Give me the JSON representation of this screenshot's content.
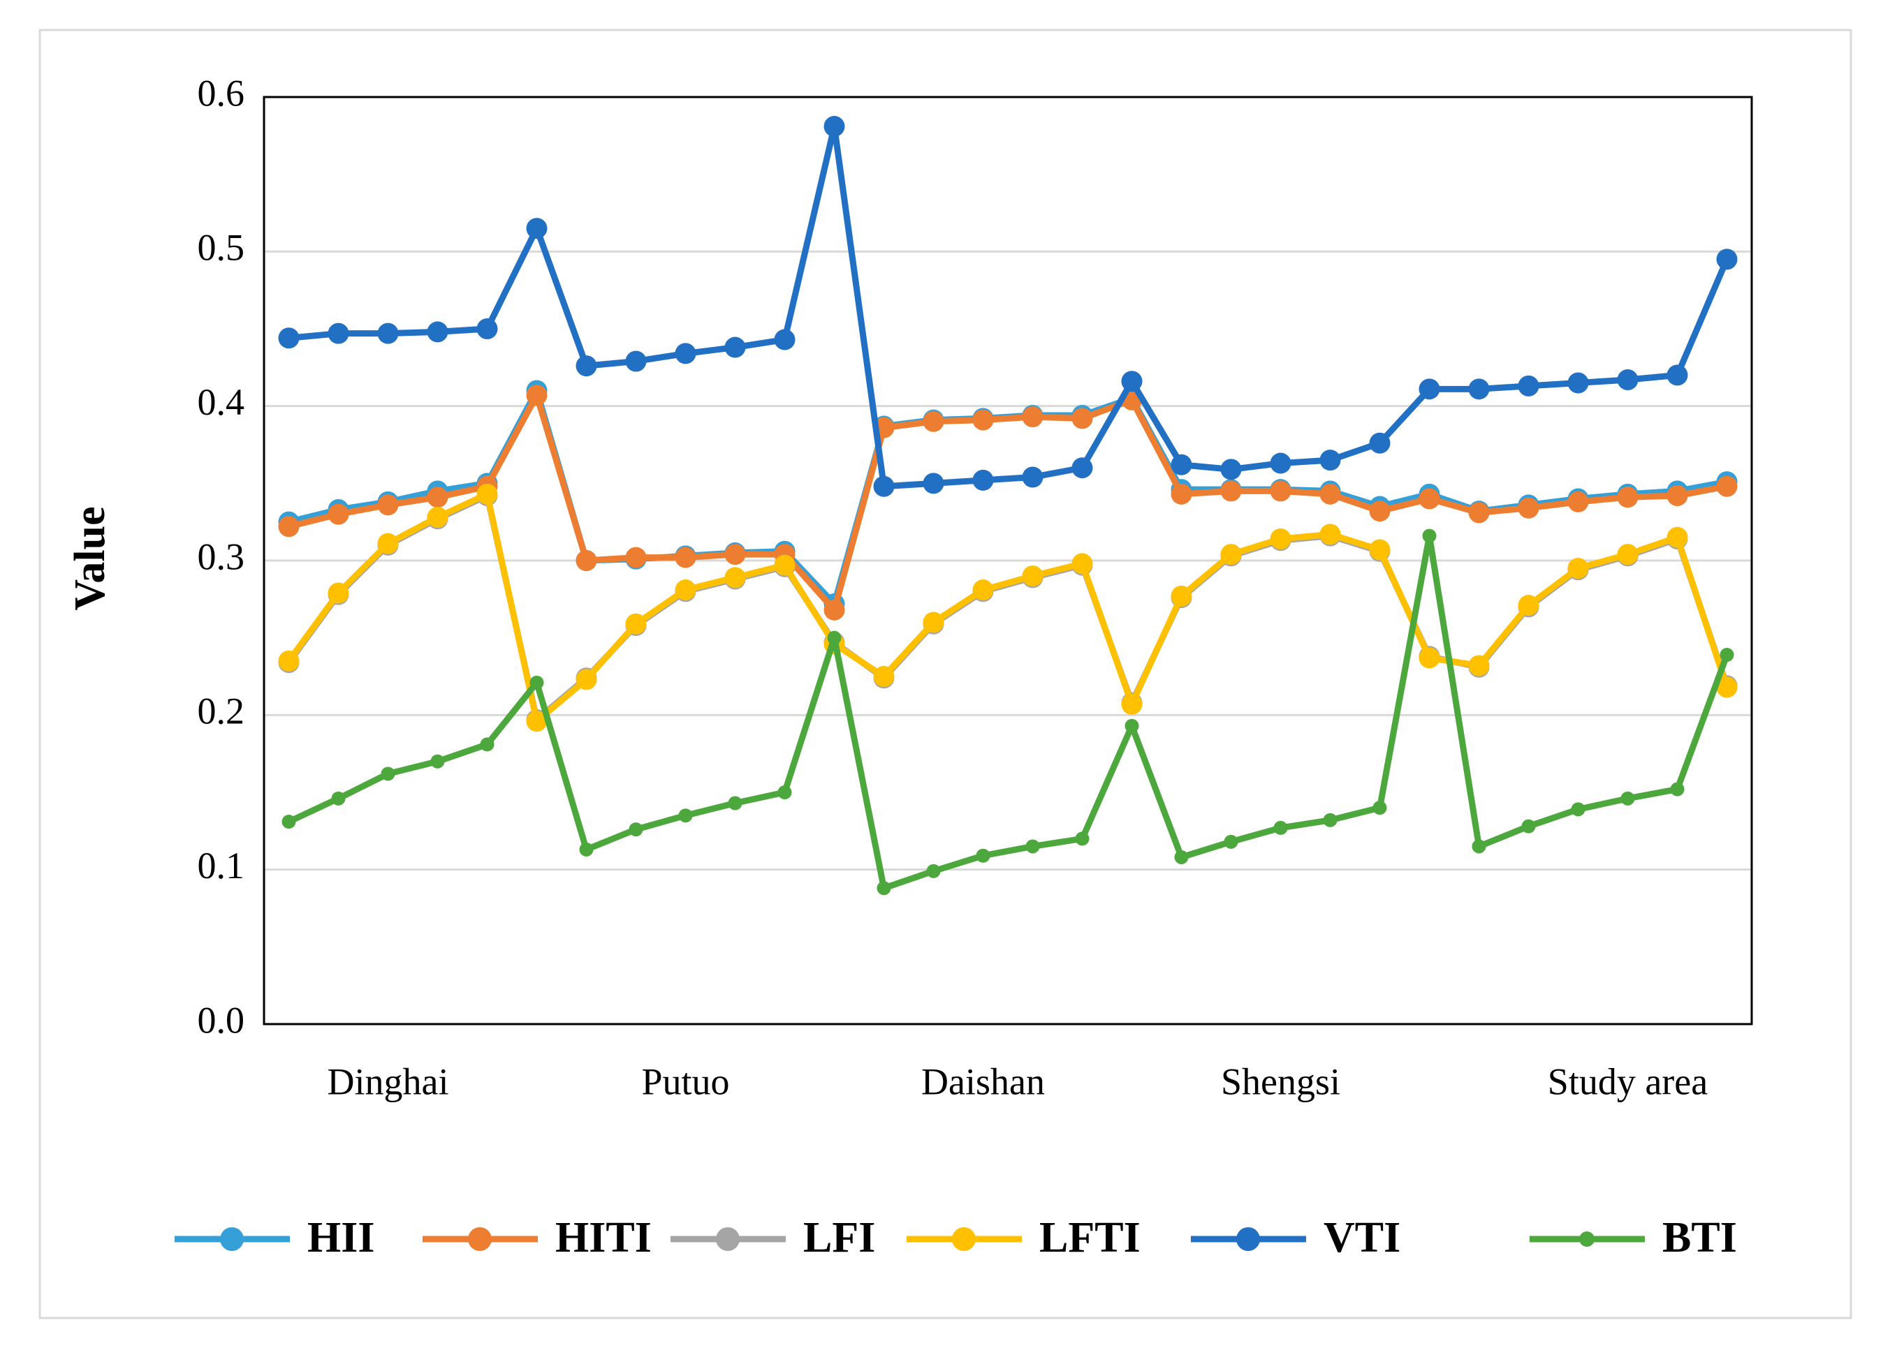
{
  "chart_data": {
    "type": "line",
    "ylabel": "Value",
    "categories": [
      null,
      null,
      "Dinghai",
      null,
      null,
      null,
      null,
      null,
      "Putuo",
      null,
      null,
      null,
      null,
      null,
      "Daishan",
      null,
      null,
      null,
      null,
      null,
      "Shengsi",
      null,
      null,
      null,
      null,
      null,
      null,
      "Study area",
      null,
      null
    ],
    "ylim": [
      0,
      0.6
    ],
    "yticks": [
      {
        "value": 0,
        "label": "0.0"
      },
      0.1,
      0.2,
      0.3,
      0.4,
      0.5,
      0.6
    ],
    "grid": true,
    "legend": "bottom",
    "series": [
      {
        "name": "HII",
        "color": "#35a0d8",
        "values": [
          0.325,
          0.333,
          0.338,
          0.345,
          0.35,
          0.41,
          0.3,
          0.301,
          0.303,
          0.305,
          0.306,
          0.272,
          0.387,
          0.391,
          0.392,
          0.394,
          0.394,
          0.405,
          0.346,
          0.346,
          0.346,
          0.345,
          0.335,
          0.343,
          0.332,
          0.336,
          0.34,
          0.343,
          0.345,
          0.351
        ]
      },
      {
        "name": "HITI",
        "color": "#ed7d31",
        "values": [
          0.322,
          0.33,
          0.336,
          0.341,
          0.348,
          0.407,
          0.3,
          0.302,
          0.302,
          0.304,
          0.304,
          0.268,
          0.386,
          0.39,
          0.391,
          0.393,
          0.392,
          0.404,
          0.343,
          0.345,
          0.345,
          0.343,
          0.332,
          0.34,
          0.331,
          0.334,
          0.338,
          0.341,
          0.342,
          0.348
        ]
      },
      {
        "name": "LFI",
        "color": "#a5a5a5",
        "values": [
          0.234,
          0.278,
          0.31,
          0.327,
          0.342,
          0.197,
          0.224,
          0.258,
          0.28,
          0.288,
          0.296,
          0.247,
          0.224,
          0.259,
          0.28,
          0.289,
          0.297,
          0.208,
          0.276,
          0.303,
          0.313,
          0.316,
          0.306,
          0.238,
          0.231,
          0.27,
          0.294,
          0.303,
          0.314,
          0.219
        ]
      },
      {
        "name": "LFTI",
        "color": "#ffc000",
        "values": [
          0.235,
          0.279,
          0.311,
          0.328,
          0.343,
          0.196,
          0.223,
          0.259,
          0.281,
          0.289,
          0.297,
          0.246,
          0.225,
          0.26,
          0.281,
          0.29,
          0.298,
          0.207,
          0.277,
          0.304,
          0.314,
          0.317,
          0.307,
          0.237,
          0.232,
          0.271,
          0.295,
          0.304,
          0.315,
          0.218
        ]
      },
      {
        "name": "VTI",
        "color": "#2270c4",
        "values": [
          0.444,
          0.447,
          0.447,
          0.448,
          0.45,
          0.515,
          0.426,
          0.429,
          0.434,
          0.438,
          0.443,
          0.581,
          0.348,
          0.35,
          0.352,
          0.354,
          0.36,
          0.416,
          0.362,
          0.359,
          0.363,
          0.365,
          0.376,
          0.411,
          0.411,
          0.413,
          0.415,
          0.417,
          0.42,
          0.495
        ]
      },
      {
        "name": "BTI",
        "color": "#4ca83c",
        "values": [
          0.131,
          0.146,
          0.162,
          0.17,
          0.181,
          0.221,
          0.113,
          0.126,
          0.135,
          0.143,
          0.15,
          0.25,
          0.088,
          0.099,
          0.109,
          0.115,
          0.12,
          0.193,
          0.108,
          0.118,
          0.127,
          0.132,
          0.14,
          0.316,
          0.115,
          0.128,
          0.139,
          0.146,
          0.152,
          0.239
        ]
      }
    ]
  }
}
